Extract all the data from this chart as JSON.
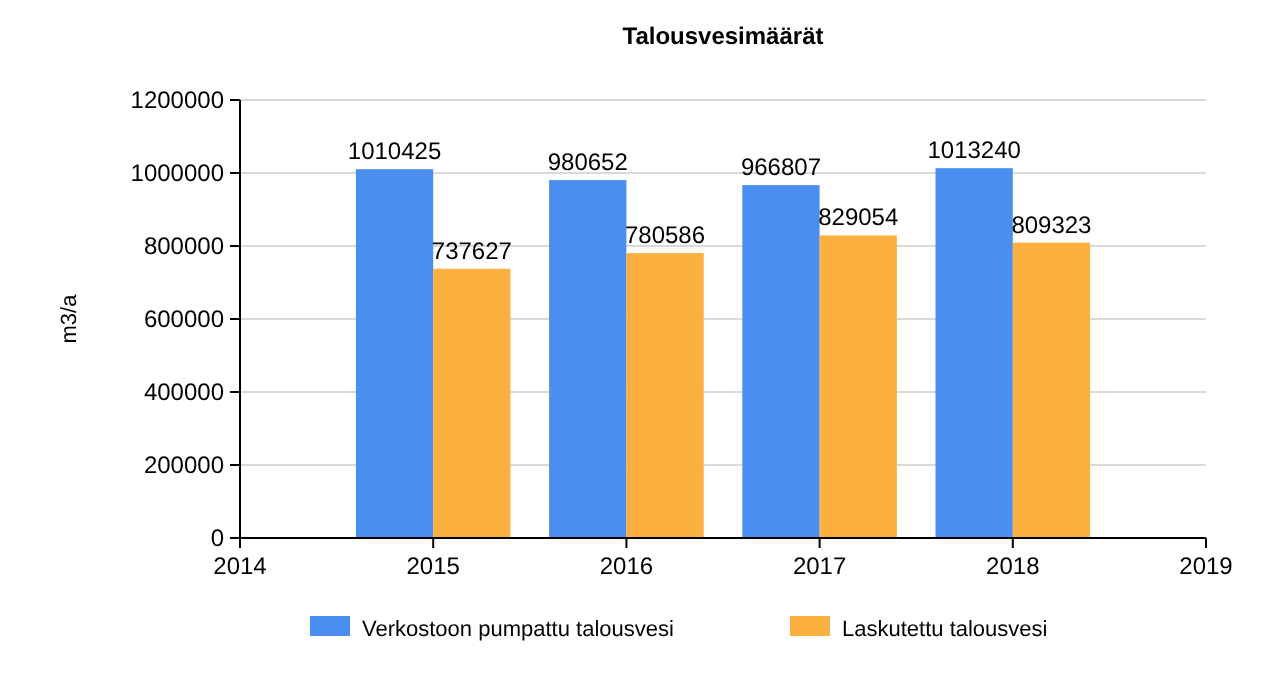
{
  "chart_data": {
    "type": "bar",
    "title": "Talousvesimäärät",
    "ylabel": "m3/a",
    "x": [
      2015,
      2016,
      2017,
      2018
    ],
    "series": [
      {
        "name": "Verkostoon pumpattu talousvesi",
        "color": "#4a8ff0",
        "values": [
          1010425,
          980652,
          966807,
          1013240
        ]
      },
      {
        "name": "Laskutettu talousvesi",
        "color": "#fbb040",
        "values": [
          737627,
          780586,
          829054,
          809323
        ]
      }
    ],
    "xlim": [
      2014,
      2019
    ],
    "xticks": [
      2014,
      2015,
      2016,
      2017,
      2018,
      2019
    ],
    "ylim": [
      0,
      1200000
    ],
    "yticks": [
      0,
      200000,
      400000,
      600000,
      800000,
      1000000,
      1200000
    ],
    "grid": "y",
    "legend": "bottom",
    "data_labels": true
  }
}
